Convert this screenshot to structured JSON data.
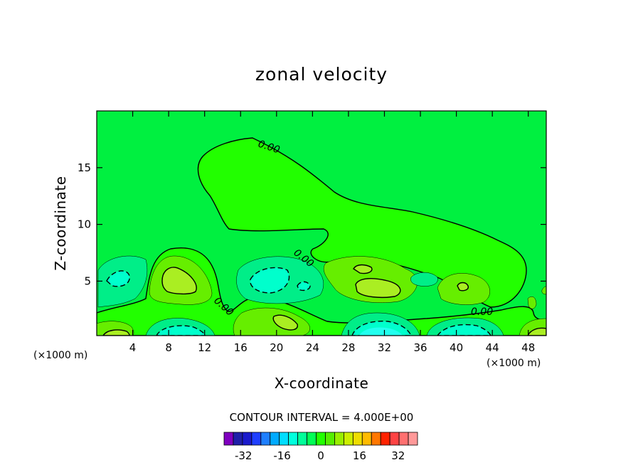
{
  "chart_data": {
    "type": "contour",
    "title": "zonal velocity",
    "xlabel": "X-coordinate",
    "ylabel": "Z-coordinate",
    "x_unit": "(×1000 m)",
    "y_unit": "(×1000 m)",
    "xlim": [
      0,
      50
    ],
    "ylim": [
      0.2,
      20
    ],
    "x_ticks": [
      4,
      8,
      12,
      16,
      20,
      24,
      28,
      32,
      36,
      40,
      44,
      48
    ],
    "y_ticks": [
      5,
      10,
      15
    ],
    "contour_interval_text": "CONTOUR INTERVAL = 4.000E+00",
    "contour_interval": 4,
    "contour_labels": [
      "0.00",
      "0.00",
      "0.00",
      "0.00"
    ],
    "colorbar": {
      "levels": [
        -40,
        -36,
        -32,
        -28,
        -24,
        -20,
        -16,
        -12,
        -8,
        -4,
        0,
        4,
        8,
        12,
        16,
        20,
        24,
        28,
        32,
        36,
        40
      ],
      "colors": [
        "#7f00bf",
        "#1f1fa8",
        "#1a1acc",
        "#1f3fff",
        "#1f7fff",
        "#00aaff",
        "#00ddff",
        "#00ffdd",
        "#00ff99",
        "#00ff55",
        "#22ff00",
        "#55ee00",
        "#99ee00",
        "#ccee00",
        "#eedd00",
        "#ffbb00",
        "#ff7700",
        "#ff2200",
        "#ff4444",
        "#ff7070",
        "#ff9999"
      ],
      "tick_values": [
        -32,
        -16,
        0,
        16,
        32
      ],
      "tick_labels": [
        "-32",
        "-16",
        "0",
        "16",
        "32"
      ]
    },
    "fill_colors": {
      "background": "#00f040",
      "zero_region": "#22ff00",
      "pos_4": "#66ee00",
      "pos_8": "#aaee22",
      "neg_4": "#00ee88",
      "neg_8": "#00ffcc",
      "neg_12": "#22ffee"
    }
  }
}
